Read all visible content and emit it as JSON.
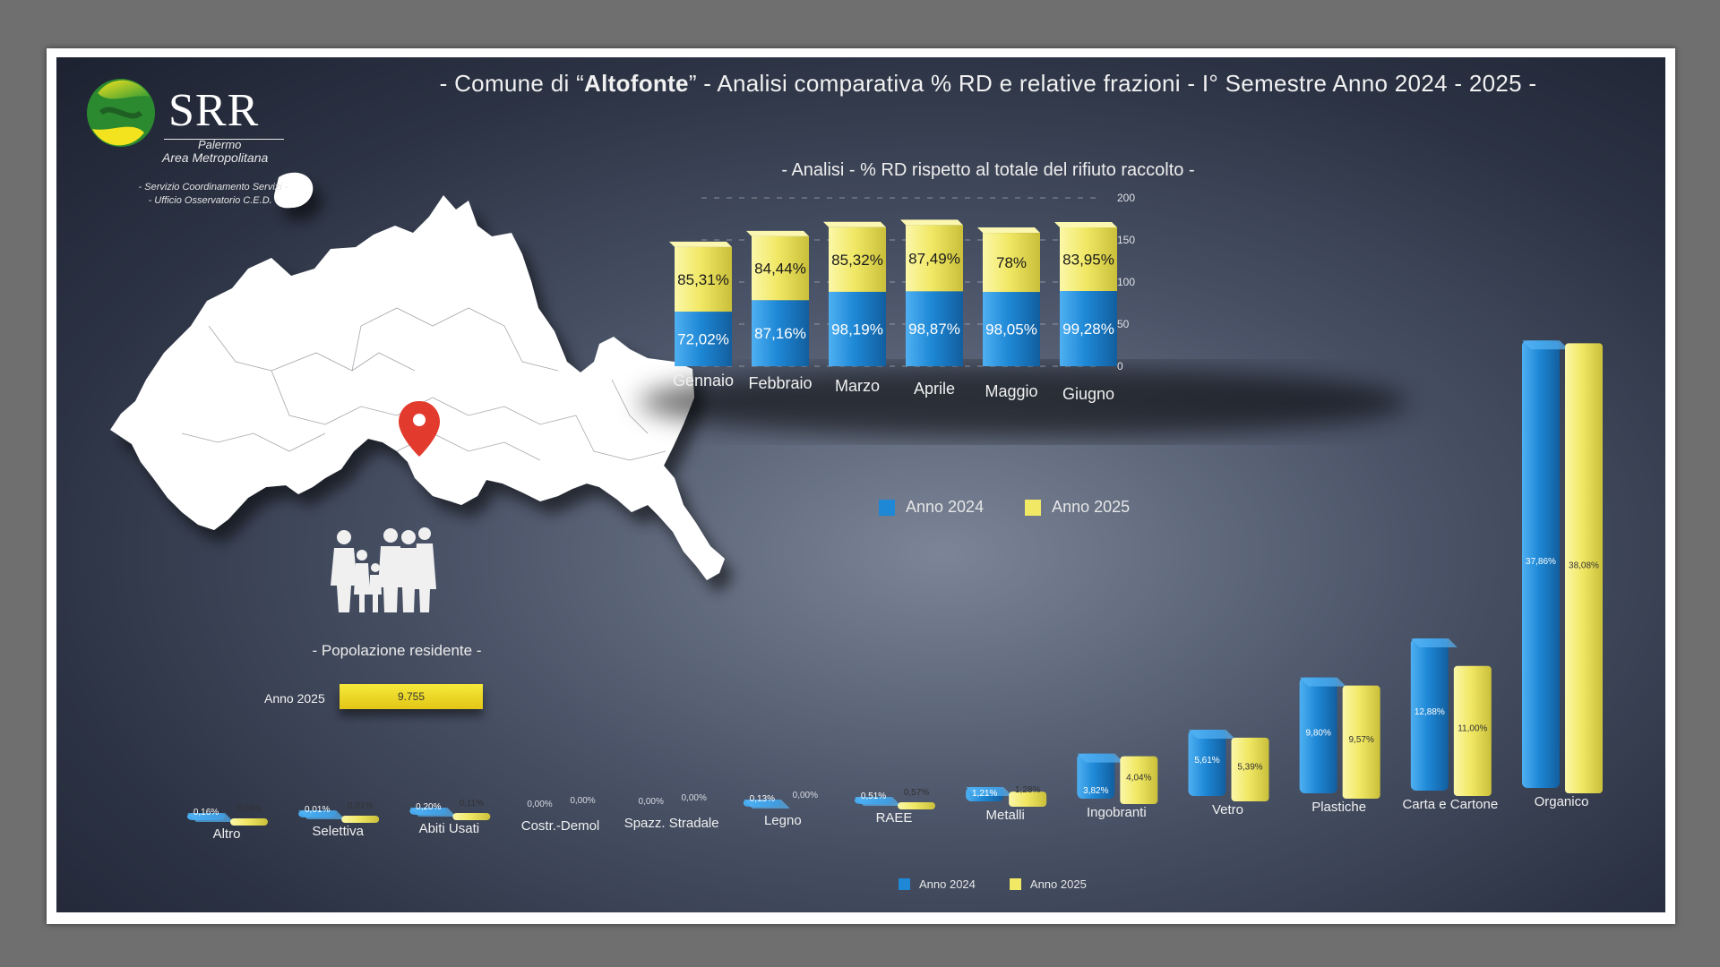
{
  "header": {
    "title_prefix": "- Comune di “",
    "title_town": "Altofonte",
    "title_suffix": "” - Analisi comparativa % RD e relative frazioni - I° Semestre Anno 2024 - 2025 -"
  },
  "logo": {
    "name": "SRR",
    "line1": "Palermo",
    "line2": "Area Metropolitana",
    "office_line1": "- Servizio Coordinamento Servizi -",
    "office_line2": "- Ufficio Osservatorio C.E.D. -"
  },
  "population": {
    "label": "- Popolazione residente -",
    "year": "Anno 2025",
    "value": "9.755"
  },
  "colors": {
    "anno2024": "#1e88d6",
    "anno2025": "#f1e865",
    "background": "#323a4c",
    "map": "#ffffff",
    "pin": "#e23b2e"
  },
  "chart_data": [
    {
      "type": "bar",
      "title": "- Analisi - % RD rispetto al totale del rifiuto raccolto -",
      "stacked": true,
      "categories": [
        "Gennaio",
        "Febbraio",
        "Marzo",
        "Aprile",
        "Maggio",
        "Giugno"
      ],
      "series": [
        {
          "name": "Anno 2024",
          "values": [
            72.02,
            87.16,
            98.19,
            98.87,
            98.05,
            99.28
          ],
          "labels": [
            "72,02%",
            "87,16%",
            "98,19%",
            "98,87%",
            "98,05%",
            "99,28%"
          ]
        },
        {
          "name": "Anno 2025",
          "values": [
            85.31,
            84.44,
            85.32,
            87.49,
            78,
            83.95
          ],
          "labels": [
            "85,31%",
            "84,44%",
            "85,32%",
            "87,49%",
            "78%",
            "83,95%"
          ]
        }
      ],
      "yticks": [
        "200",
        "150",
        "100",
        "50",
        "0"
      ],
      "ylim": [
        0,
        200
      ],
      "legend": "bottom"
    },
    {
      "type": "bar",
      "categories": [
        "Altro",
        "Selettiva",
        "Abiti Usati",
        "Costr.-Demol",
        "Spazz. Stradale",
        "Legno",
        "RAEE",
        "Metalli",
        "Ingobranti",
        "Vetro",
        "Plastiche",
        "Carta e Cartone",
        "Organico"
      ],
      "series": [
        {
          "name": "Anno 2024",
          "values": [
            0.16,
            0.01,
            0.2,
            0,
            0,
            0.13,
            0.51,
            1.21,
            3.82,
            5.61,
            9.8,
            12.88,
            37.86
          ],
          "labels": [
            "0,16%",
            "0,01%",
            "0,20%",
            "0,00%",
            "0,00%",
            "0,13%",
            "0,51%",
            "1,21%",
            "3,82%",
            "5,61%",
            "9,80%",
            "12,88%",
            "37,86%"
          ]
        },
        {
          "name": "Anno 2025",
          "values": [
            0.04,
            0.01,
            0.11,
            0,
            0,
            0,
            0.57,
            1.28,
            4.04,
            5.39,
            9.57,
            11.0,
            38.08
          ],
          "labels": [
            "0,04%",
            "0,01%",
            "0,11%",
            "0,00%",
            "0,00%",
            "0,00%",
            "0,57%",
            "1,28%",
            "4,04%",
            "5,39%",
            "9,57%",
            "11,00%",
            "38,08%"
          ]
        }
      ],
      "legend": "bottom"
    }
  ]
}
